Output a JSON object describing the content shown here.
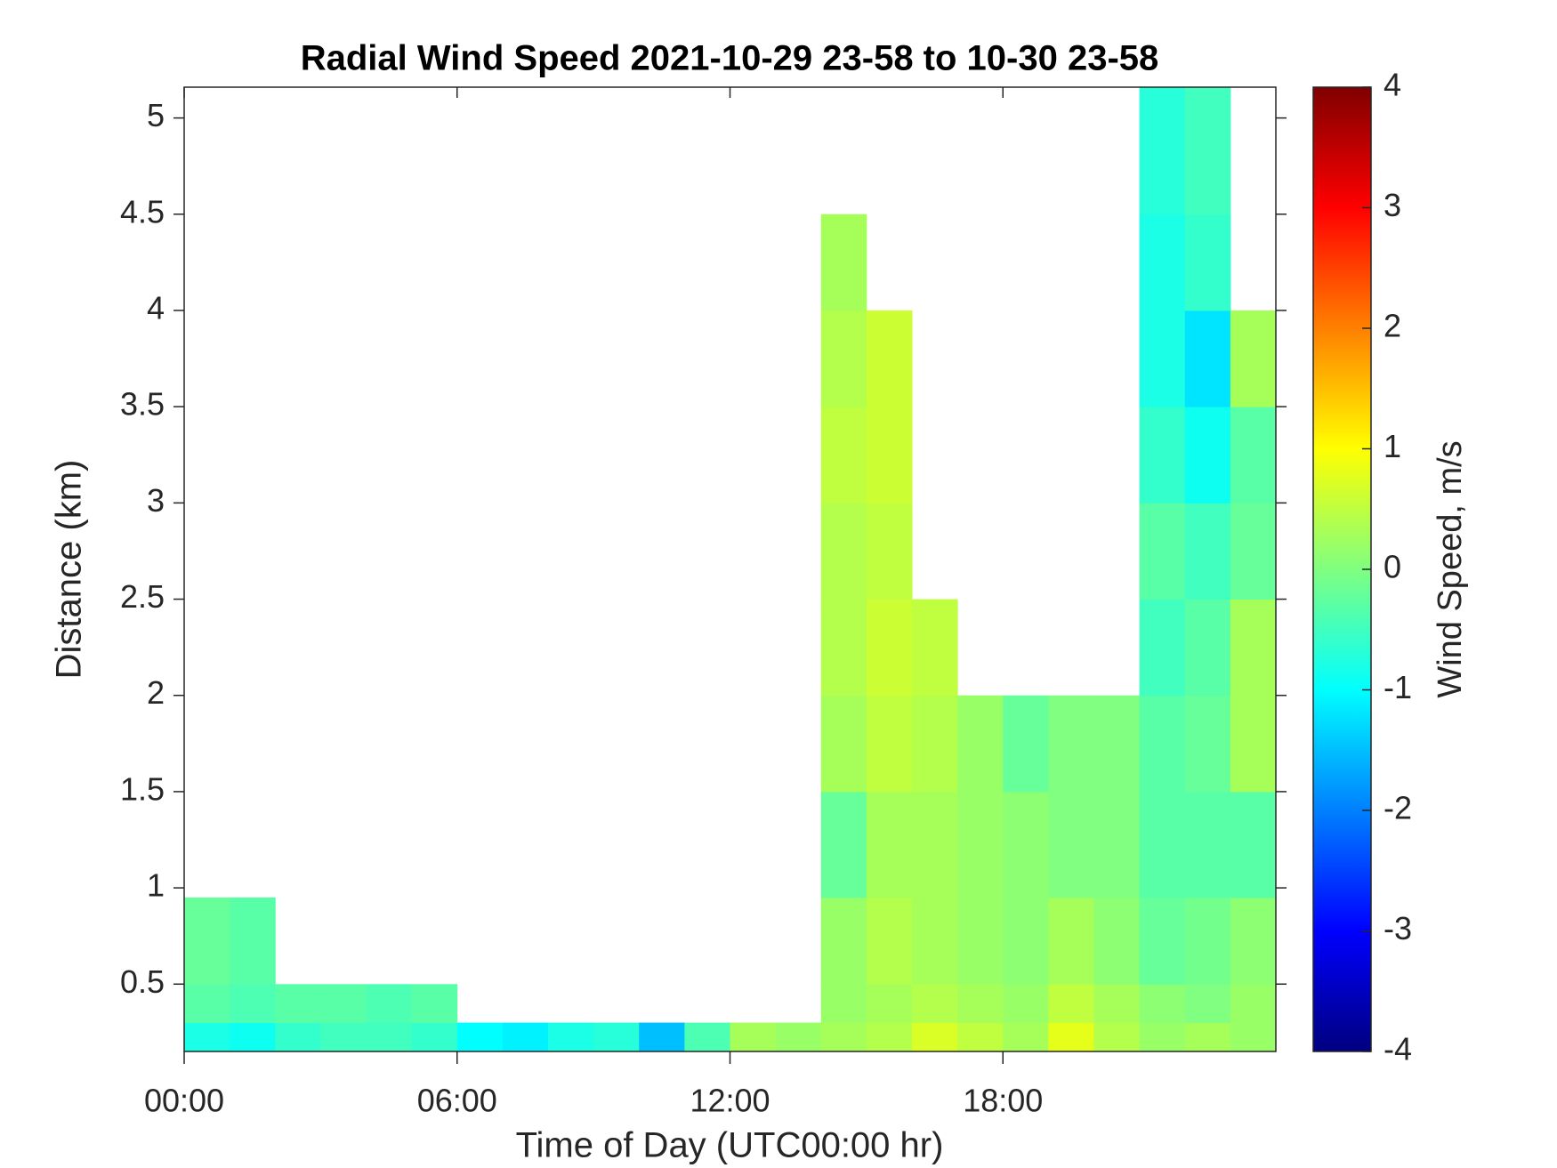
{
  "chart_data": {
    "type": "heatmap",
    "title": "Radial Wind Speed 2021-10-29 23-58 to 10-30 23-58",
    "x_label": "Time of Day (UTC00:00 hr)",
    "y_label": "Distance (km)",
    "colorbar_label": "Wind Speed, m/s",
    "colormap": "jet",
    "xlim": [
      0,
      24
    ],
    "xticks": [
      {
        "value": 0,
        "label": "00:00"
      },
      {
        "value": 6,
        "label": "06:00"
      },
      {
        "value": 12,
        "label": "12:00"
      },
      {
        "value": 18,
        "label": "18:00"
      }
    ],
    "ylim": [
      0.15,
      5.16
    ],
    "yticks": [
      0.5,
      1,
      1.5,
      2,
      2.5,
      3,
      3.5,
      4,
      4.5,
      5
    ],
    "clim": [
      -4,
      4
    ],
    "cticks": [
      -4,
      -3,
      -2,
      -1,
      0,
      1,
      2,
      3,
      4
    ],
    "x_edges": [
      0,
      1,
      2,
      3,
      4,
      5,
      6,
      7,
      8,
      9,
      10,
      11,
      12,
      13,
      14,
      15,
      16,
      17,
      18,
      19,
      20,
      21,
      22,
      23,
      24
    ],
    "y_edges": [
      0.15,
      0.3,
      0.5,
      0.95,
      1.5,
      2.0,
      2.5,
      3.0,
      3.5,
      4.0,
      4.5,
      5.16
    ],
    "z": [
      [
        -0.8,
        -0.9,
        -0.6,
        -0.5,
        -0.5,
        -0.6,
        -1,
        -1.1,
        -0.8,
        -0.7,
        -1.5,
        -0.4,
        0.3,
        0.2,
        0.3,
        0.4,
        0.7,
        0.5,
        0.3,
        0.8,
        0.4,
        0.2,
        0.3,
        0.2
      ],
      [
        -0.3,
        -0.4,
        -0.3,
        -0.3,
        -0.4,
        -0.3,
        null,
        null,
        null,
        null,
        null,
        null,
        null,
        null,
        0.2,
        0.3,
        0.4,
        0.3,
        0.2,
        0.5,
        0.3,
        0.1,
        0,
        0.2
      ],
      [
        -0.2,
        -0.3,
        null,
        null,
        null,
        null,
        null,
        null,
        null,
        null,
        null,
        null,
        null,
        null,
        0.2,
        0.4,
        0.3,
        0.2,
        0.1,
        0.3,
        0.1,
        -0.2,
        -0.1,
        0.1
      ],
      [
        null,
        null,
        null,
        null,
        null,
        null,
        null,
        null,
        null,
        null,
        null,
        null,
        null,
        null,
        -0.2,
        0.3,
        0.3,
        0.2,
        0.1,
        0,
        0,
        -0.3,
        -0.3,
        -0.3
      ],
      [
        null,
        null,
        null,
        null,
        null,
        null,
        null,
        null,
        null,
        null,
        null,
        null,
        null,
        null,
        0.3,
        0.5,
        0.4,
        0.2,
        -0.2,
        0,
        0,
        -0.3,
        -0.2,
        0.3
      ],
      [
        null,
        null,
        null,
        null,
        null,
        null,
        null,
        null,
        null,
        null,
        null,
        null,
        null,
        null,
        0.4,
        0.6,
        0.5,
        null,
        null,
        null,
        null,
        -0.5,
        -0.3,
        0.3
      ],
      [
        null,
        null,
        null,
        null,
        null,
        null,
        null,
        null,
        null,
        null,
        null,
        null,
        null,
        null,
        0.4,
        0.5,
        null,
        null,
        null,
        null,
        null,
        -0.3,
        -0.5,
        -0.2
      ],
      [
        null,
        null,
        null,
        null,
        null,
        null,
        null,
        null,
        null,
        null,
        null,
        null,
        null,
        null,
        0.5,
        0.6,
        null,
        null,
        null,
        null,
        null,
        -0.6,
        -0.9,
        -0.3
      ],
      [
        null,
        null,
        null,
        null,
        null,
        null,
        null,
        null,
        null,
        null,
        null,
        null,
        null,
        null,
        0.4,
        0.6,
        null,
        null,
        null,
        null,
        null,
        -0.8,
        -1.2,
        0.3
      ],
      [
        null,
        null,
        null,
        null,
        null,
        null,
        null,
        null,
        null,
        null,
        null,
        null,
        null,
        null,
        0.3,
        null,
        null,
        null,
        null,
        null,
        null,
        -0.8,
        -0.6,
        null
      ],
      [
        null,
        null,
        null,
        null,
        null,
        null,
        null,
        null,
        null,
        null,
        null,
        null,
        null,
        null,
        null,
        null,
        null,
        null,
        null,
        null,
        null,
        -0.7,
        -0.5,
        null
      ]
    ]
  }
}
